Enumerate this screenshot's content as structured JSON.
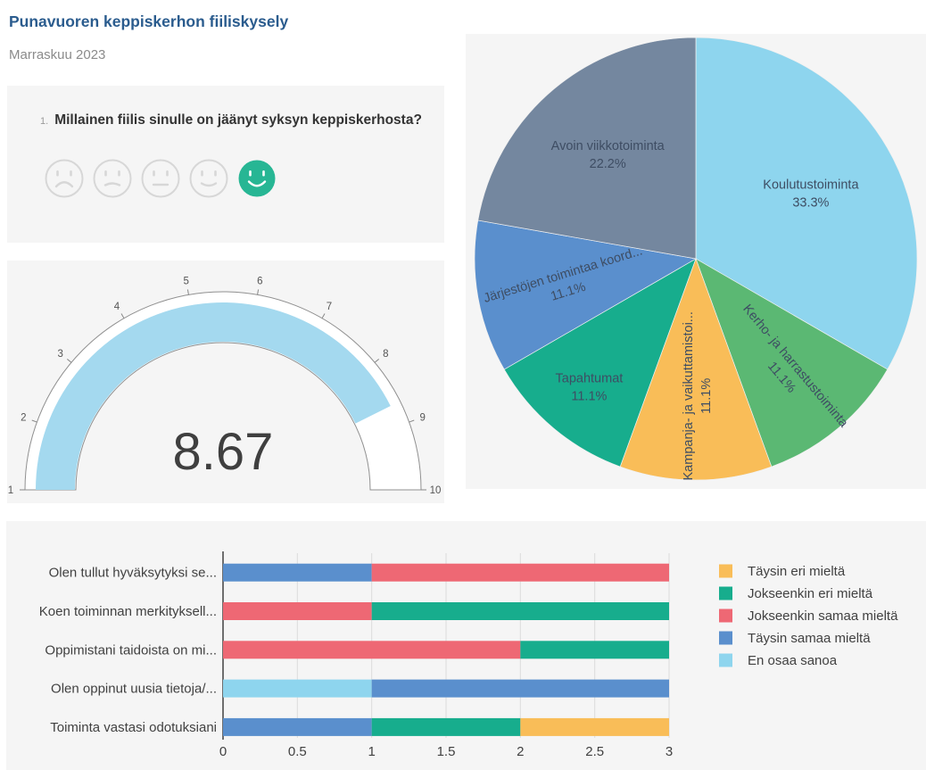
{
  "page": {
    "title": "Punavuoren keppiskerhon fiiliskysely",
    "subtitle": "Marraskuu 2023"
  },
  "question": {
    "number": "1.",
    "text": "Millainen fiilis sinulle on jäänyt syksyn keppiskerhosta?",
    "options": [
      {
        "mood": "very-sad",
        "selected": false
      },
      {
        "mood": "sad",
        "selected": false
      },
      {
        "mood": "neutral",
        "selected": false
      },
      {
        "mood": "happy",
        "selected": false
      },
      {
        "mood": "very-happy",
        "selected": true
      }
    ],
    "selected_color": "#27b694",
    "unselected_color": "#d7d7d7"
  },
  "chart_data": [
    {
      "type": "gauge",
      "value": 8.67,
      "value_label": "8.67",
      "min": 1,
      "max": 10,
      "ticks": [
        "1",
        "2",
        "3",
        "4",
        "5",
        "6",
        "7",
        "8",
        "9",
        "10"
      ],
      "band_color": "#a4d9ef",
      "ring_stroke": "#909090",
      "value_color": "#3f3f3f"
    },
    {
      "type": "pie",
      "start_angle_deg": 0,
      "slices": [
        {
          "label": "Koulutustoiminta",
          "pct_label": "33.3%",
          "value": 33.3,
          "color": "#8ed5ee",
          "label_rotation": 0,
          "label_r": 0.6
        },
        {
          "label": "Kerho- ja harrastustoiminta",
          "pct_label": "11.1%",
          "value": 11.1,
          "color": "#5bb873",
          "label_rotation": 50,
          "label_r": 0.66
        },
        {
          "label": "Kampanja- ja vaikuttamistoi...",
          "pct_label": "11.1%",
          "value": 11.1,
          "color": "#f9bd58",
          "label_rotation": -90,
          "label_r": 0.62
        },
        {
          "label": "Tapahtumat",
          "pct_label": "11.1%",
          "value": 11.1,
          "color": "#17ad8d",
          "label_rotation": 0,
          "label_r": 0.75
        },
        {
          "label": "Järjestöjen toimintaa koord...",
          "pct_label": "11.1%",
          "value": 11.1,
          "color": "#5a8fcd",
          "label_rotation": -17,
          "label_r": 0.6
        },
        {
          "label": "Avoin viikkotoiminta",
          "pct_label": "22.2%",
          "value": 22.2,
          "color": "#74879f",
          "label_rotation": 0,
          "label_r": 0.62
        }
      ],
      "label_color": "#3e4d63"
    },
    {
      "type": "bar",
      "stacked": true,
      "horizontal": true,
      "categories": [
        "Olen tullut hyväksytyksi se...",
        "Koen toiminnan merkityksell...",
        "Oppimistani taidoista on mi...",
        "Olen oppinut uusia tietoja/...",
        "Toiminta vastasi odotuksiani"
      ],
      "rows": [
        [
          {
            "series": "Täysin samaa mieltä",
            "value": 1
          },
          {
            "series": "Jokseenkin samaa mieltä",
            "value": 2
          }
        ],
        [
          {
            "series": "Jokseenkin samaa mieltä",
            "value": 1
          },
          {
            "series": "Jokseenkin eri mieltä",
            "value": 2
          }
        ],
        [
          {
            "series": "Jokseenkin samaa mieltä",
            "value": 2
          },
          {
            "series": "Jokseenkin eri mieltä",
            "value": 1
          }
        ],
        [
          {
            "series": "En osaa sanoa",
            "value": 1
          },
          {
            "series": "Täysin samaa mieltä",
            "value": 2
          }
        ],
        [
          {
            "series": "Täysin samaa mieltä",
            "value": 1
          },
          {
            "series": "Jokseenkin eri mieltä",
            "value": 1
          },
          {
            "series": "Täysin eri mieltä",
            "value": 1
          }
        ]
      ],
      "series_colors": {
        "Täysin eri mieltä": "#f9bd58",
        "Jokseenkin eri mieltä": "#17ad8d",
        "Jokseenkin samaa mieltä": "#ee6874",
        "Täysin samaa mieltä": "#5a8fcd",
        "En osaa sanoa": "#8ed5ee"
      },
      "legend": [
        "Täysin eri mieltä",
        "Jokseenkin eri mieltä",
        "Jokseenkin samaa mieltä",
        "Täysin samaa mieltä",
        "En osaa sanoa"
      ],
      "legend_position": "right",
      "x_ticks": [
        "0",
        "0.5",
        "1",
        "1.5",
        "2",
        "2.5",
        "3"
      ],
      "xlim": [
        0,
        3
      ],
      "grid": true,
      "label_color": "#414141"
    }
  ]
}
